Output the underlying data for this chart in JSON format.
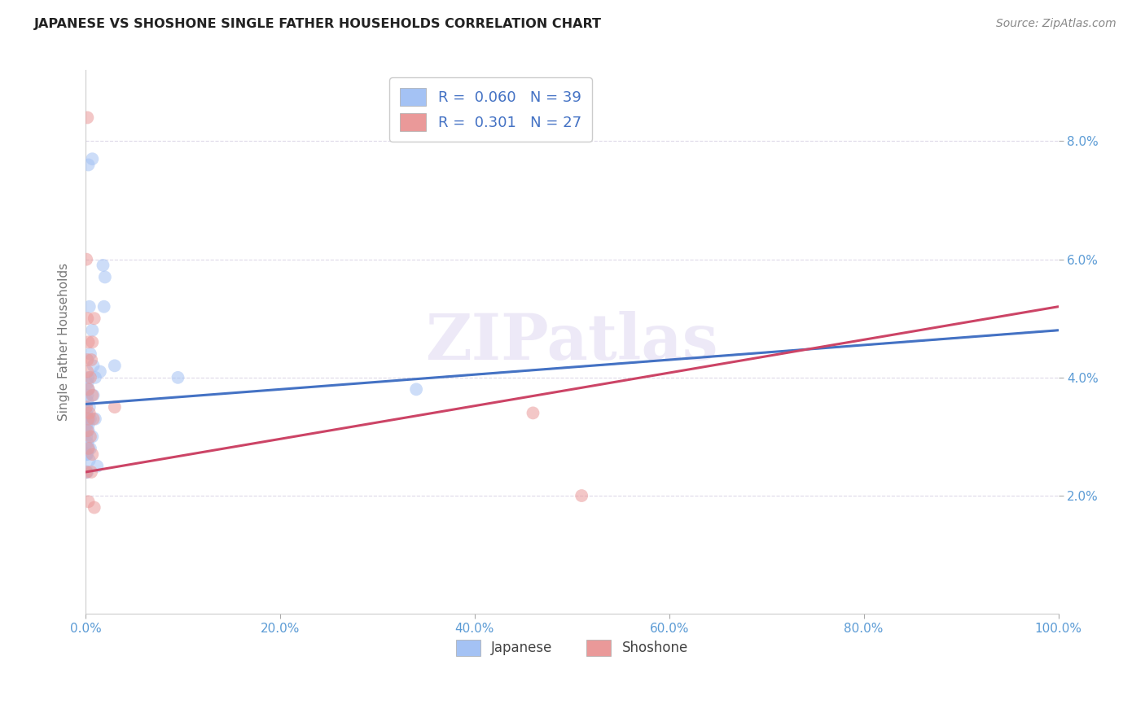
{
  "title": "JAPANESE VS SHOSHONE SINGLE FATHER HOUSEHOLDS CORRELATION CHART",
  "source": "Source: ZipAtlas.com",
  "ylabel": "Single Father Households",
  "xlabel_ticks": [
    "0.0%",
    "20.0%",
    "40.0%",
    "60.0%",
    "80.0%",
    "100.0%"
  ],
  "ylabel_ticks": [
    "2.0%",
    "4.0%",
    "6.0%",
    "8.0%"
  ],
  "xlim": [
    0.0,
    1.0
  ],
  "ylim": [
    0.0,
    0.092
  ],
  "watermark": "ZIPatlas",
  "japanese_color": "#a4c2f4",
  "shoshone_color": "#ea9999",
  "japanese_scatter": [
    [
      0.003,
      0.076
    ],
    [
      0.007,
      0.077
    ],
    [
      0.018,
      0.059
    ],
    [
      0.02,
      0.057
    ],
    [
      0.004,
      0.052
    ],
    [
      0.019,
      0.052
    ],
    [
      0.007,
      0.048
    ],
    [
      0.005,
      0.044
    ],
    [
      0.008,
      0.042
    ],
    [
      0.015,
      0.041
    ],
    [
      0.003,
      0.04
    ],
    [
      0.01,
      0.04
    ],
    [
      0.002,
      0.039
    ],
    [
      0.003,
      0.038
    ],
    [
      0.002,
      0.037
    ],
    [
      0.008,
      0.037
    ],
    [
      0.002,
      0.036
    ],
    [
      0.004,
      0.035
    ],
    [
      0.001,
      0.034
    ],
    [
      0.005,
      0.033
    ],
    [
      0.002,
      0.033
    ],
    [
      0.01,
      0.033
    ],
    [
      0.001,
      0.032
    ],
    [
      0.003,
      0.032
    ],
    [
      0.003,
      0.031
    ],
    [
      0.007,
      0.03
    ],
    [
      0.001,
      0.03
    ],
    [
      0.002,
      0.029
    ],
    [
      0.003,
      0.028
    ],
    [
      0.005,
      0.028
    ],
    [
      0.001,
      0.027
    ],
    [
      0.002,
      0.027
    ],
    [
      0.004,
      0.026
    ],
    [
      0.012,
      0.025
    ],
    [
      0.001,
      0.024
    ],
    [
      0.002,
      0.024
    ],
    [
      0.03,
      0.042
    ],
    [
      0.095,
      0.04
    ],
    [
      0.34,
      0.038
    ]
  ],
  "shoshone_scatter": [
    [
      0.002,
      0.084
    ],
    [
      0.001,
      0.06
    ],
    [
      0.002,
      0.05
    ],
    [
      0.009,
      0.05
    ],
    [
      0.003,
      0.046
    ],
    [
      0.007,
      0.046
    ],
    [
      0.002,
      0.043
    ],
    [
      0.006,
      0.043
    ],
    [
      0.002,
      0.041
    ],
    [
      0.005,
      0.04
    ],
    [
      0.003,
      0.038
    ],
    [
      0.007,
      0.037
    ],
    [
      0.001,
      0.035
    ],
    [
      0.004,
      0.034
    ],
    [
      0.003,
      0.033
    ],
    [
      0.008,
      0.033
    ],
    [
      0.002,
      0.031
    ],
    [
      0.005,
      0.03
    ],
    [
      0.003,
      0.028
    ],
    [
      0.007,
      0.027
    ],
    [
      0.001,
      0.024
    ],
    [
      0.006,
      0.024
    ],
    [
      0.003,
      0.019
    ],
    [
      0.009,
      0.018
    ],
    [
      0.03,
      0.035
    ],
    [
      0.46,
      0.034
    ],
    [
      0.51,
      0.02
    ]
  ],
  "japanese_line_x": [
    0.0,
    1.0
  ],
  "japanese_line_y": [
    0.0355,
    0.048
  ],
  "shoshone_line_x": [
    0.0,
    1.0
  ],
  "shoshone_line_y": [
    0.024,
    0.052
  ],
  "background_color": "#ffffff",
  "grid_color": "#ddd8e8",
  "marker_size": 130,
  "marker_alpha": 0.55
}
